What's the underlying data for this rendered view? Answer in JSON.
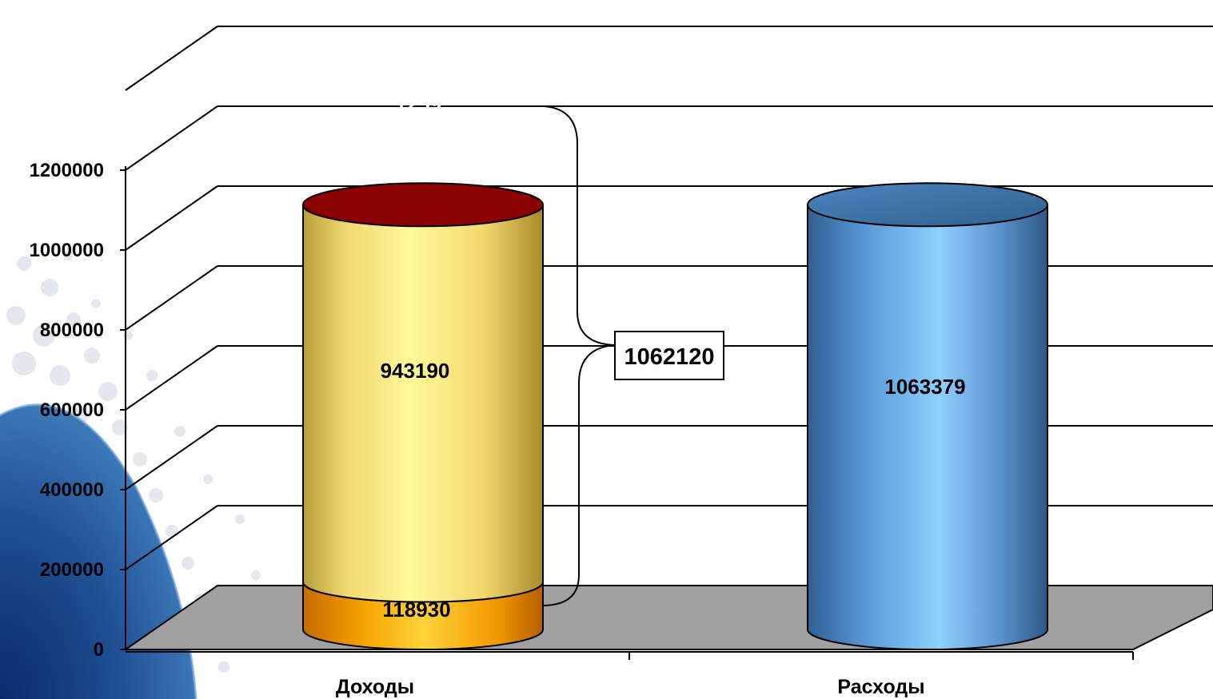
{
  "chart_data": {
    "type": "bar",
    "style": "3d-cylinder-stacked",
    "categories": [
      "Доходы",
      "Расходы"
    ],
    "series": [
      {
        "values": [
          118930,
          null
        ],
        "color": "#f39a00"
      },
      {
        "values": [
          943190,
          null
        ],
        "color": "#f9e07a"
      },
      {
        "values": [
          1259,
          null
        ],
        "color": "#8b0000"
      },
      {
        "values": [
          null,
          1063379
        ],
        "color": "#4a86c5"
      }
    ],
    "data_labels": {
      "d_bottom": "118930",
      "d_middle": "943190",
      "d_top": "1259",
      "r_total": "1063379"
    },
    "total_annotation": "1062120",
    "yticks": [
      "0",
      "200000",
      "400000",
      "600000",
      "800000",
      "1000000",
      "1200000"
    ],
    "ylim": [
      0,
      1200000
    ],
    "grid": true,
    "floor_color": "#a0a0a0",
    "legend": "none"
  }
}
